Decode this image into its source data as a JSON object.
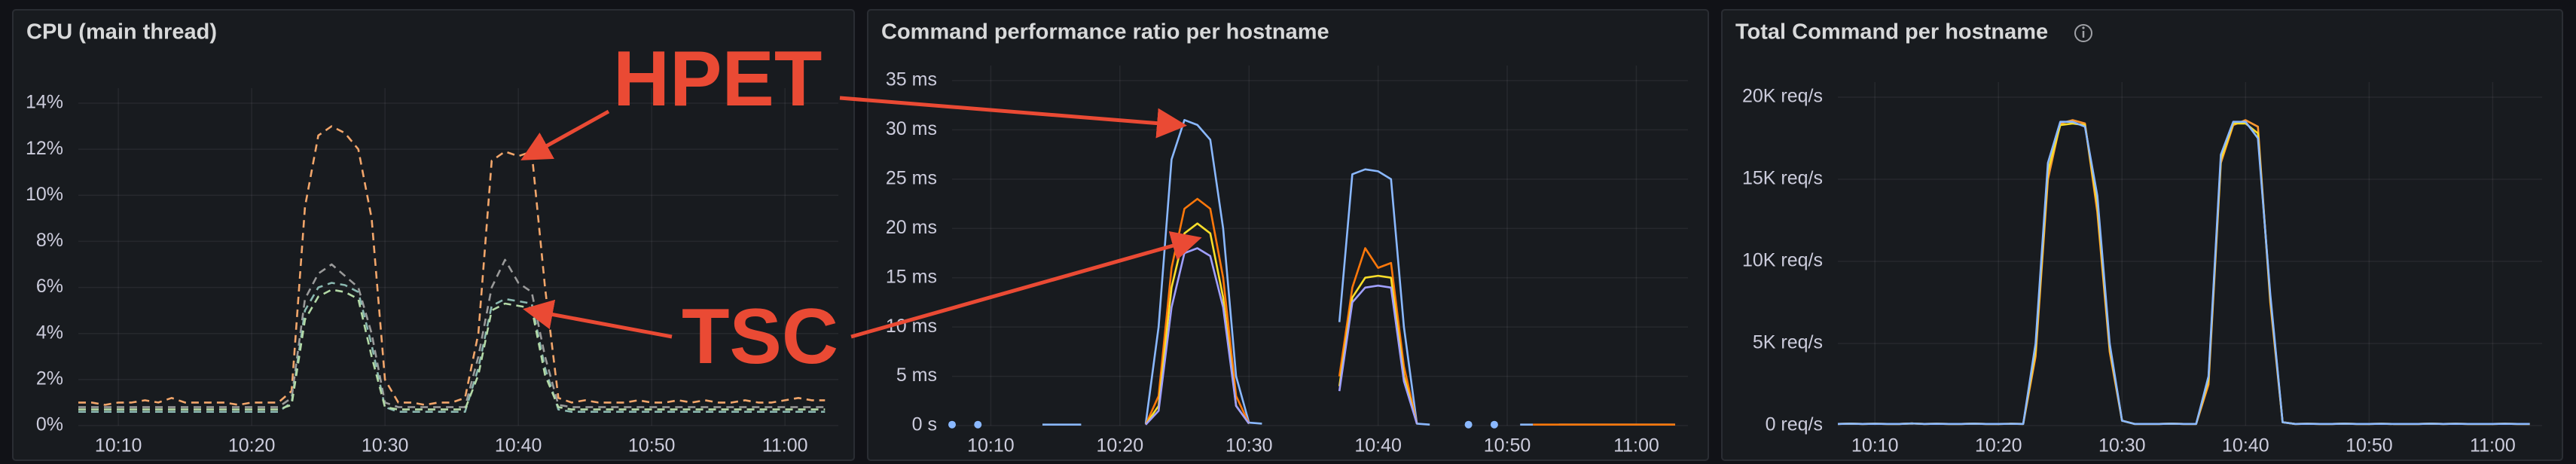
{
  "chart_data": [
    {
      "type": "line",
      "title": "CPU (main thread)",
      "line_style": "dashed",
      "grid": true,
      "x": [
        "10:07",
        "10:08",
        "10:09",
        "10:10",
        "10:11",
        "10:12",
        "10:13",
        "10:14",
        "10:15",
        "10:16",
        "10:17",
        "10:18",
        "10:19",
        "10:20",
        "10:21",
        "10:22",
        "10:23",
        "10:24",
        "10:25",
        "10:26",
        "10:27",
        "10:28",
        "10:29",
        "10:30",
        "10:31",
        "10:32",
        "10:33",
        "10:34",
        "10:35",
        "10:36",
        "10:37",
        "10:38",
        "10:39",
        "10:40",
        "10:41",
        "10:42",
        "10:43",
        "10:44",
        "10:45",
        "10:46",
        "10:47",
        "10:48",
        "10:49",
        "10:50",
        "10:51",
        "10:52",
        "10:53",
        "10:54",
        "10:55",
        "10:56",
        "10:57",
        "10:58",
        "10:59",
        "11:00",
        "11:01",
        "11:02",
        "11:03"
      ],
      "xlim": [
        "10:07",
        "11:04"
      ],
      "xticks": [
        "10:10",
        "10:20",
        "10:30",
        "10:40",
        "10:50",
        "11:00"
      ],
      "ylim": [
        0,
        14
      ],
      "yticks": [
        {
          "value": 0,
          "label": "0%"
        },
        {
          "value": 2,
          "label": "2%"
        },
        {
          "value": 4,
          "label": "4%"
        },
        {
          "value": 6,
          "label": "6%"
        },
        {
          "value": 8,
          "label": "8%"
        },
        {
          "value": 10,
          "label": "10%"
        },
        {
          "value": 12,
          "label": "12%"
        },
        {
          "value": 14,
          "label": "14%"
        }
      ],
      "series": [
        {
          "color": "#f2a66b",
          "values": [
            1.0,
            1.0,
            0.9,
            1.0,
            1.0,
            1.1,
            1.0,
            1.2,
            1.0,
            1.0,
            1.0,
            1.0,
            0.9,
            1.0,
            1.0,
            1.0,
            1.5,
            9.5,
            12.6,
            13.0,
            12.7,
            12.0,
            9.0,
            2.0,
            1.0,
            1.0,
            0.9,
            1.0,
            1.0,
            1.2,
            4.0,
            11.5,
            11.9,
            11.7,
            11.9,
            6.0,
            1.2,
            1.0,
            1.1,
            1.0,
            1.0,
            1.0,
            1.1,
            1.0,
            1.0,
            1.1,
            1.0,
            1.1,
            1.0,
            1.0,
            1.1,
            1.0,
            1.0,
            1.1,
            1.2,
            1.1,
            1.1
          ]
        },
        {
          "color": "#9a9a9a",
          "values": [
            0.8,
            0.8,
            0.8,
            0.8,
            0.8,
            0.8,
            0.8,
            0.8,
            0.8,
            0.8,
            0.8,
            0.8,
            0.8,
            0.8,
            0.8,
            0.8,
            1.2,
            5.5,
            6.6,
            7.0,
            6.5,
            6.0,
            4.0,
            1.0,
            0.8,
            0.8,
            0.8,
            0.8,
            0.8,
            0.8,
            3.0,
            6.0,
            7.2,
            6.2,
            5.8,
            3.0,
            0.9,
            0.8,
            0.8,
            0.8,
            0.8,
            0.8,
            0.8,
            0.8,
            0.8,
            0.8,
            0.8,
            0.8,
            0.8,
            0.8,
            0.8,
            0.8,
            0.8,
            0.8,
            0.8,
            0.8,
            0.8
          ]
        },
        {
          "color": "#8ab8b0",
          "values": [
            0.6,
            0.6,
            0.6,
            0.6,
            0.6,
            0.6,
            0.6,
            0.6,
            0.6,
            0.6,
            0.6,
            0.6,
            0.6,
            0.6,
            0.6,
            0.6,
            1.0,
            5.0,
            6.0,
            6.2,
            6.1,
            5.8,
            3.5,
            0.8,
            0.6,
            0.6,
            0.6,
            0.6,
            0.6,
            0.6,
            2.5,
            5.2,
            5.5,
            5.4,
            5.3,
            2.5,
            0.7,
            0.6,
            0.6,
            0.6,
            0.6,
            0.6,
            0.6,
            0.6,
            0.6,
            0.6,
            0.6,
            0.6,
            0.6,
            0.6,
            0.6,
            0.6,
            0.6,
            0.6,
            0.6,
            0.6,
            0.6
          ]
        },
        {
          "color": "#b3d9a6",
          "values": [
            0.7,
            0.7,
            0.7,
            0.7,
            0.7,
            0.7,
            0.7,
            0.7,
            0.7,
            0.7,
            0.7,
            0.7,
            0.7,
            0.7,
            0.7,
            0.7,
            0.9,
            4.6,
            5.6,
            5.9,
            5.8,
            5.5,
            3.0,
            0.8,
            0.7,
            0.7,
            0.7,
            0.7,
            0.7,
            0.7,
            2.2,
            5.0,
            5.3,
            5.2,
            5.1,
            2.2,
            0.8,
            0.7,
            0.7,
            0.7,
            0.7,
            0.7,
            0.7,
            0.7,
            0.7,
            0.7,
            0.7,
            0.7,
            0.7,
            0.7,
            0.7,
            0.7,
            0.7,
            0.7,
            0.7,
            0.7,
            0.7
          ]
        }
      ]
    },
    {
      "type": "line",
      "title": "Command performance ratio per hostname",
      "line_style": "solid",
      "grid": true,
      "x": [
        "10:07",
        "10:08",
        "10:09",
        "10:10",
        "10:11",
        "10:12",
        "10:13",
        "10:14",
        "10:15",
        "10:16",
        "10:17",
        "10:18",
        "10:19",
        "10:20",
        "10:21",
        "10:22",
        "10:23",
        "10:24",
        "10:25",
        "10:26",
        "10:27",
        "10:28",
        "10:29",
        "10:30",
        "10:31",
        "10:32",
        "10:33",
        "10:34",
        "10:35",
        "10:36",
        "10:37",
        "10:38",
        "10:39",
        "10:40",
        "10:41",
        "10:42",
        "10:43",
        "10:44",
        "10:45",
        "10:46",
        "10:47",
        "10:48",
        "10:49",
        "10:50",
        "10:51",
        "10:52",
        "10:53",
        "10:54",
        "10:55",
        "10:56",
        "10:57",
        "10:58",
        "10:59",
        "11:00",
        "11:01",
        "11:02",
        "11:03"
      ],
      "xlim": [
        "10:07",
        "11:04"
      ],
      "xticks": [
        "10:10",
        "10:20",
        "10:30",
        "10:40",
        "10:50",
        "11:00"
      ],
      "ylim": [
        0,
        35
      ],
      "yticks": [
        {
          "value": 0,
          "label": "0 s"
        },
        {
          "value": 5,
          "label": "5 ms"
        },
        {
          "value": 10,
          "label": "10 ms"
        },
        {
          "value": 15,
          "label": "15 ms"
        },
        {
          "value": 20,
          "label": "20 ms"
        },
        {
          "value": 25,
          "label": "25 ms"
        },
        {
          "value": 30,
          "label": "30 ms"
        },
        {
          "value": 35,
          "label": "35 ms"
        }
      ],
      "series": [
        {
          "color": "#8ab8ff",
          "values": [
            0.1,
            null,
            0.1,
            null,
            null,
            null,
            null,
            0.1,
            0.1,
            0.1,
            0.1,
            null,
            null,
            null,
            null,
            0.2,
            10,
            27,
            31,
            30.5,
            29,
            20,
            5,
            0.3,
            0.2,
            null,
            null,
            null,
            null,
            null,
            10.5,
            25.5,
            26,
            25.8,
            25,
            10,
            0.2,
            0.1,
            null,
            null,
            0.1,
            null,
            0.1,
            null,
            0.1,
            0.1,
            null,
            0.1,
            0.1,
            0.1,
            0.1,
            0.1,
            0.1,
            0.1,
            0.1,
            0.1,
            0.1
          ]
        },
        {
          "color": "#ff780a",
          "values": [
            null,
            null,
            null,
            null,
            null,
            null,
            null,
            null,
            null,
            null,
            null,
            null,
            null,
            null,
            null,
            0.1,
            3,
            16,
            22,
            23,
            22,
            15,
            3,
            0.2,
            null,
            null,
            null,
            null,
            null,
            null,
            5,
            14,
            18,
            16,
            16.5,
            6,
            0.2,
            null,
            null,
            null,
            null,
            null,
            null,
            null,
            null,
            0.1,
            0.1,
            0.1,
            0.1,
            0.1,
            0.1,
            0.1,
            0.1,
            0.1,
            0.1,
            0.1,
            0.1
          ]
        },
        {
          "color": "#fade2a",
          "values": [
            null,
            null,
            null,
            null,
            null,
            null,
            null,
            null,
            null,
            null,
            null,
            null,
            null,
            null,
            null,
            0.1,
            2,
            14,
            19.5,
            20.5,
            19.5,
            13,
            2,
            0.2,
            null,
            null,
            null,
            null,
            null,
            null,
            4,
            13,
            15,
            15.2,
            15,
            5,
            0.2,
            null,
            null,
            null,
            null,
            null,
            null,
            null,
            null,
            null,
            null,
            null,
            null,
            null,
            null,
            null,
            null,
            null,
            null,
            null,
            null
          ]
        },
        {
          "color": "#a0a0ff",
          "values": [
            null,
            null,
            null,
            null,
            null,
            null,
            null,
            null,
            null,
            null,
            null,
            null,
            null,
            null,
            null,
            0.1,
            1.5,
            12,
            17.5,
            18,
            17.2,
            12,
            2,
            0.2,
            null,
            null,
            null,
            null,
            null,
            null,
            3.5,
            12.5,
            14,
            14.2,
            14,
            4.5,
            0.2,
            null,
            null,
            null,
            null,
            null,
            null,
            null,
            null,
            null,
            null,
            null,
            null,
            null,
            null,
            null,
            null,
            null,
            null,
            null,
            null
          ]
        }
      ]
    },
    {
      "type": "line",
      "title": "Total Command per hostname",
      "line_style": "solid",
      "grid": true,
      "x": [
        "10:07",
        "10:08",
        "10:09",
        "10:10",
        "10:11",
        "10:12",
        "10:13",
        "10:14",
        "10:15",
        "10:16",
        "10:17",
        "10:18",
        "10:19",
        "10:20",
        "10:21",
        "10:22",
        "10:23",
        "10:24",
        "10:25",
        "10:26",
        "10:27",
        "10:28",
        "10:29",
        "10:30",
        "10:31",
        "10:32",
        "10:33",
        "10:34",
        "10:35",
        "10:36",
        "10:37",
        "10:38",
        "10:39",
        "10:40",
        "10:41",
        "10:42",
        "10:43",
        "10:44",
        "10:45",
        "10:46",
        "10:47",
        "10:48",
        "10:49",
        "10:50",
        "10:51",
        "10:52",
        "10:53",
        "10:54",
        "10:55",
        "10:56",
        "10:57",
        "10:58",
        "10:59",
        "11:00",
        "11:01",
        "11:02",
        "11:03"
      ],
      "xlim": [
        "10:07",
        "11:04"
      ],
      "xticks": [
        "10:10",
        "10:20",
        "10:30",
        "10:40",
        "10:50",
        "11:00"
      ],
      "ylim": [
        0,
        20000
      ],
      "yticks": [
        {
          "value": 0,
          "label": "0 req/s"
        },
        {
          "value": 5000,
          "label": "5K req/s"
        },
        {
          "value": 10000,
          "label": "10K req/s"
        },
        {
          "value": 15000,
          "label": "15K req/s"
        },
        {
          "value": 20000,
          "label": "20K req/s"
        }
      ],
      "series": [
        {
          "color": "#ff9830",
          "values": [
            100,
            120,
            100,
            110,
            100,
            100,
            130,
            100,
            110,
            100,
            100,
            120,
            100,
            100,
            110,
            100,
            4200,
            15000,
            18400,
            18600,
            18400,
            13000,
            4500,
            300,
            100,
            100,
            100,
            120,
            100,
            100,
            2500,
            16000,
            18300,
            18600,
            18200,
            7500,
            200,
            100,
            110,
            100,
            100,
            120,
            100,
            100,
            110,
            100,
            100,
            100,
            120,
            100,
            110,
            100,
            100,
            100,
            110,
            100,
            100
          ]
        },
        {
          "color": "#fade2a",
          "values": [
            100,
            120,
            100,
            110,
            100,
            100,
            130,
            100,
            110,
            100,
            100,
            120,
            100,
            100,
            110,
            100,
            4600,
            15500,
            18300,
            18400,
            18300,
            13500,
            4800,
            300,
            100,
            100,
            100,
            120,
            100,
            100,
            2800,
            16200,
            18400,
            18400,
            17800,
            7800,
            200,
            100,
            110,
            100,
            100,
            120,
            100,
            100,
            110,
            100,
            100,
            100,
            120,
            100,
            110,
            100,
            100,
            100,
            110,
            100,
            100
          ]
        },
        {
          "color": "#8ab8ff",
          "values": [
            100,
            120,
            100,
            110,
            100,
            100,
            130,
            100,
            110,
            100,
            100,
            120,
            100,
            100,
            110,
            100,
            5000,
            16000,
            18500,
            18500,
            18200,
            14000,
            5000,
            300,
            100,
            100,
            100,
            120,
            100,
            100,
            3000,
            16500,
            18500,
            18500,
            17500,
            8000,
            200,
            100,
            110,
            100,
            100,
            120,
            100,
            100,
            110,
            100,
            100,
            100,
            120,
            100,
            110,
            100,
            100,
            100,
            110,
            100,
            100
          ]
        }
      ]
    }
  ],
  "annotations": [
    "HPET",
    "TSC"
  ]
}
